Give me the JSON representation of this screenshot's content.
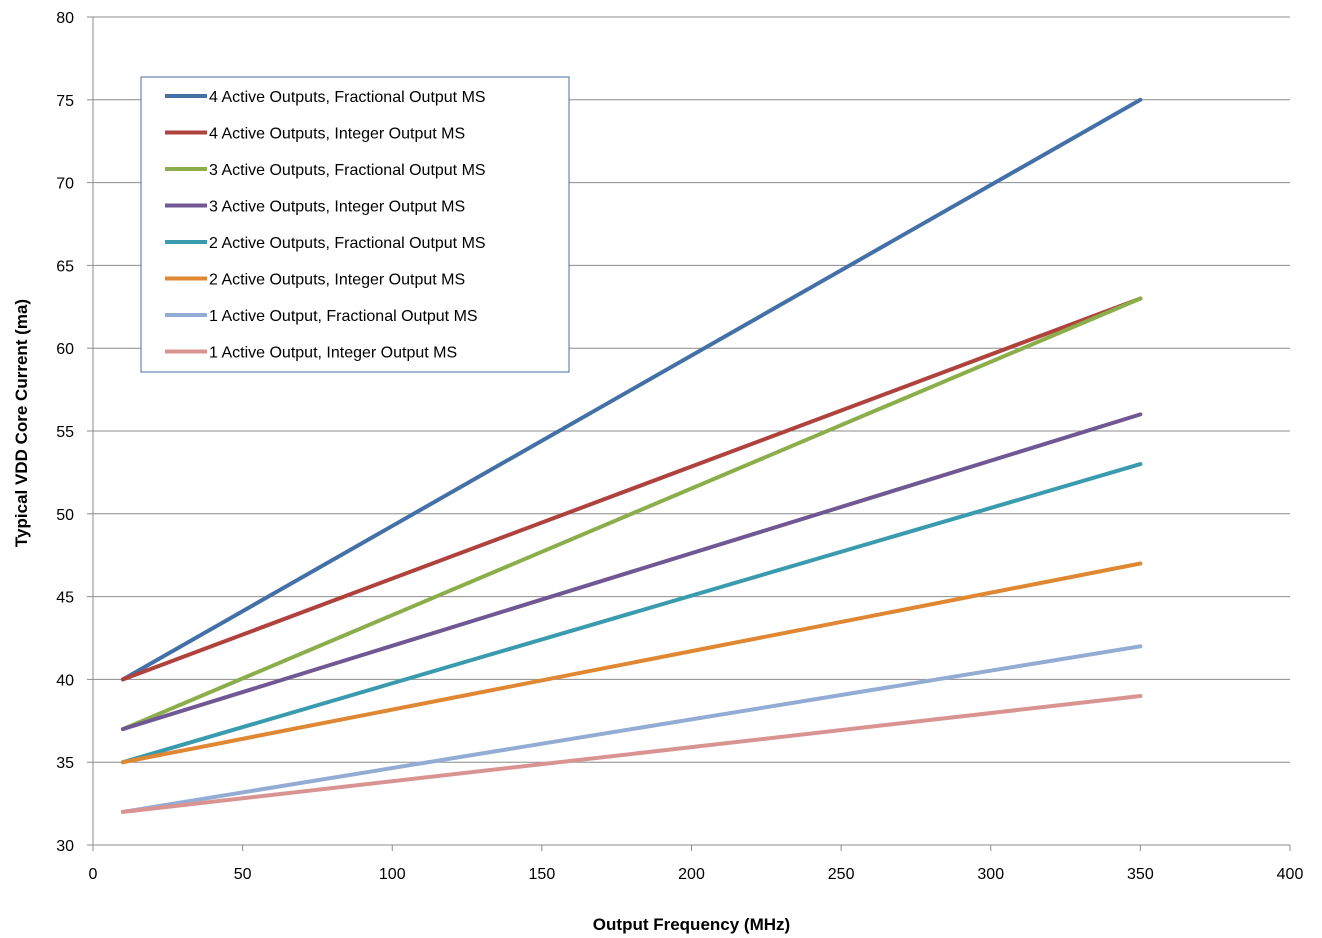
{
  "chart_data": {
    "type": "line",
    "xlabel": "Output Frequency (MHz)",
    "ylabel": "Typical VDD Core Current (ma)",
    "xlim": [
      0,
      400
    ],
    "ylim": [
      30,
      80
    ],
    "xticks": [
      0,
      50,
      100,
      150,
      200,
      250,
      300,
      350,
      400
    ],
    "yticks": [
      30,
      35,
      40,
      45,
      50,
      55,
      60,
      65,
      70,
      75,
      80
    ],
    "grid": "horizontal",
    "legend_position": "top-left",
    "series": [
      {
        "name": "4 Active Outputs, Fractional Output MS",
        "color": "#4470A8",
        "x": [
          10,
          350
        ],
        "y": [
          40,
          75
        ]
      },
      {
        "name": "4 Active Outputs, Integer Output MS",
        "color": "#B0423E",
        "x": [
          10,
          350
        ],
        "y": [
          40,
          63
        ]
      },
      {
        "name": "3 Active Outputs, Fractional Output MS",
        "color": "#8BAE4A",
        "x": [
          10,
          350
        ],
        "y": [
          37,
          63
        ]
      },
      {
        "name": "3 Active Outputs, Integer Output MS",
        "color": "#6F5893",
        "x": [
          10,
          350
        ],
        "y": [
          37,
          56
        ]
      },
      {
        "name": "2 Active Outputs, Fractional Output MS",
        "color": "#3A9BAF",
        "x": [
          10,
          350
        ],
        "y": [
          35,
          53
        ]
      },
      {
        "name": "2 Active Outputs, Integer Output MS",
        "color": "#E08733",
        "x": [
          10,
          350
        ],
        "y": [
          35,
          47
        ]
      },
      {
        "name": "1 Active Output, Fractional Output MS",
        "color": "#92ACD4",
        "x": [
          10,
          350
        ],
        "y": [
          32,
          42
        ]
      },
      {
        "name": "1 Active Output, Integer Output MS",
        "color": "#D99492",
        "x": [
          10,
          350
        ],
        "y": [
          32,
          39
        ]
      }
    ]
  }
}
